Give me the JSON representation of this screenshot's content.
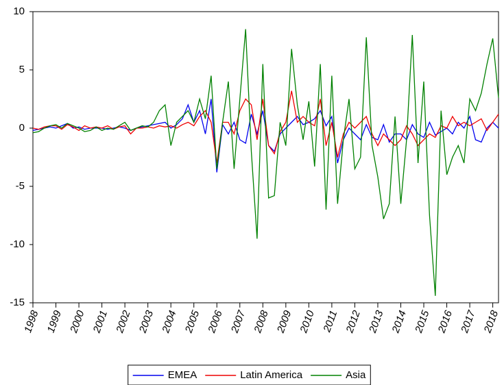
{
  "chart_data": {
    "type": "line",
    "x": [
      1998,
      1998.25,
      1998.5,
      1998.75,
      1999,
      1999.25,
      1999.5,
      1999.75,
      2000,
      2000.25,
      2000.5,
      2000.75,
      2001,
      2001.25,
      2001.5,
      2001.75,
      2002,
      2002.25,
      2002.5,
      2002.75,
      2003,
      2003.25,
      2003.5,
      2003.75,
      2004,
      2004.25,
      2004.5,
      2004.75,
      2005,
      2005.25,
      2005.5,
      2005.75,
      2006,
      2006.25,
      2006.5,
      2006.75,
      2007,
      2007.25,
      2007.5,
      2007.75,
      2008,
      2008.25,
      2008.5,
      2008.75,
      2009,
      2009.25,
      2009.5,
      2009.75,
      2010,
      2010.25,
      2010.5,
      2010.75,
      2011,
      2011.25,
      2011.5,
      2011.75,
      2012,
      2012.25,
      2012.5,
      2012.75,
      2013,
      2013.25,
      2013.5,
      2013.75,
      2014,
      2014.25,
      2014.5,
      2014.75,
      2015,
      2015.25,
      2015.5,
      2015.75,
      2016,
      2016.25,
      2016.5,
      2016.75,
      2017,
      2017.25,
      2017.5,
      2017.75,
      2018,
      2018.25
    ],
    "series": [
      {
        "name": "EMEA",
        "color": "#0000ee",
        "values": [
          -0.2,
          -0.1,
          0,
          0.1,
          0,
          0.2,
          0.4,
          0,
          0.1,
          -0.1,
          0,
          0,
          0,
          -0.1,
          0,
          0.1,
          0,
          -0.2,
          0,
          0.1,
          0.2,
          0.3,
          0.4,
          0.5,
          0,
          0.3,
          0.8,
          2.0,
          0.5,
          1.5,
          -0.5,
          2.5,
          -3.8,
          0.3,
          -0.5,
          0.5,
          -1,
          -1.3,
          1.2,
          -0.5,
          1.5,
          -1.5,
          -2,
          -0.5,
          0,
          0.5,
          1.0,
          0.3,
          0.5,
          0.8,
          1.5,
          0.2,
          1.0,
          -3,
          -1,
          0,
          -0.5,
          -1,
          0.3,
          -0.8,
          -1.0,
          0.3,
          -1.2,
          -0.5,
          -0.5,
          -1,
          0.3,
          -0.5,
          -0.8,
          0.5,
          -0.6,
          -0.3,
          0,
          -0.5,
          0.5,
          0,
          1,
          -1,
          -1.2,
          0,
          0.5,
          0
        ]
      },
      {
        "name": "Latin America",
        "color": "#ee0000",
        "values": [
          0,
          -0.1,
          0.1,
          0.2,
          0.2,
          -0.1,
          0.3,
          0.1,
          -0.2,
          0.2,
          0,
          0.1,
          0,
          0.2,
          -0.1,
          0.1,
          0.2,
          -0.5,
          0,
          0,
          0.1,
          0,
          0.2,
          0.1,
          0.2,
          0,
          0.3,
          0.5,
          0.2,
          1.0,
          1.5,
          0.5,
          -3.0,
          0.5,
          0.5,
          -0.5,
          1.5,
          2.5,
          2.0,
          -1,
          2.5,
          -1.5,
          -2.2,
          -0.3,
          0.5,
          3.2,
          0.5,
          1.0,
          0.5,
          0.2,
          2.5,
          -1.5,
          0.5,
          -2.5,
          -0.5,
          0.5,
          0,
          0.5,
          1.0,
          -0.5,
          -1.5,
          -0.5,
          -1,
          -1.5,
          -1,
          0.2,
          -0.5,
          -1.5,
          -1,
          -0.5,
          -0.8,
          0.2,
          0,
          1.0,
          0.2,
          0.5,
          0.2,
          0.5,
          0.8,
          -0.2,
          0.5,
          1.2
        ]
      },
      {
        "name": "Asia",
        "color": "#008000",
        "values": [
          -0.4,
          -0.3,
          0,
          0.2,
          0.3,
          0,
          0.4,
          0.2,
          0,
          -0.3,
          -0.2,
          0.1,
          -0.2,
          0,
          -0.1,
          0.2,
          0.5,
          -0.2,
          0,
          0.2,
          0.1,
          0.5,
          1.5,
          2.0,
          -1.5,
          0.5,
          1.0,
          1.5,
          0.5,
          2.5,
          0.8,
          4.5,
          -3.5,
          0.5,
          4.0,
          -3.5,
          2.5,
          8.5,
          -2,
          -9.5,
          5.5,
          -6,
          -5.8,
          0.5,
          -1.5,
          6.8,
          2.0,
          -1.0,
          2.3,
          -3.3,
          5.5,
          -7.0,
          4.5,
          -6.5,
          -1,
          2.5,
          -3.5,
          -2.5,
          7.8,
          -1.5,
          -4.2,
          -7.8,
          -6.5,
          1.0,
          -6.5,
          -1,
          8.0,
          -3.0,
          4.0,
          -7.5,
          -14.4,
          1.5,
          -4.0,
          -2.5,
          -1.5,
          -3.0,
          2.5,
          1.5,
          3.0,
          5.5,
          7.7,
          2.6
        ]
      }
    ],
    "xlim": [
      1998,
      2018.25
    ],
    "xticks": [
      1998,
      1999,
      2000,
      2001,
      2002,
      2003,
      2004,
      2005,
      2006,
      2007,
      2008,
      2009,
      2010,
      2011,
      2012,
      2013,
      2014,
      2015,
      2016,
      2017,
      2018
    ],
    "ylim": [
      -15,
      10
    ],
    "yticks": [
      -15,
      -10,
      -5,
      0,
      5,
      10
    ]
  }
}
